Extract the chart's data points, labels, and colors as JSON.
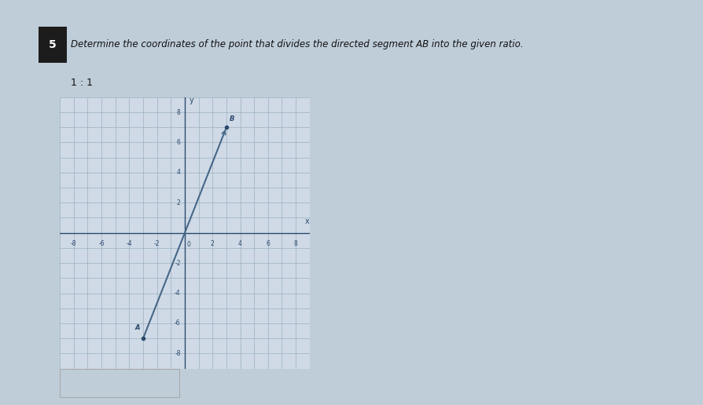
{
  "title": "Determine the coordinates of the point that divides the directed segment AB into the given ratio.",
  "ratio_text": "1 : 1",
  "problem_number": "5",
  "point_A": [
    -3,
    -7
  ],
  "point_B": [
    3,
    7
  ],
  "xlim": [
    -9,
    9
  ],
  "ylim": [
    -9,
    9
  ],
  "xticks": [
    -8,
    -6,
    -4,
    -2,
    2,
    4,
    6,
    8
  ],
  "yticks": [
    -8,
    -6,
    -4,
    -2,
    2,
    4,
    6,
    8
  ],
  "grid_color": "#9aafc0",
  "axis_color": "#2b4a6e",
  "line_color": "#4a6a8a",
  "point_color": "#2b4a6e",
  "background_color": "#bfcdd9",
  "plot_background": "#cfdae6",
  "label_A": "A",
  "label_B": "B",
  "fig_width": 8.95,
  "fig_height": 5.16
}
